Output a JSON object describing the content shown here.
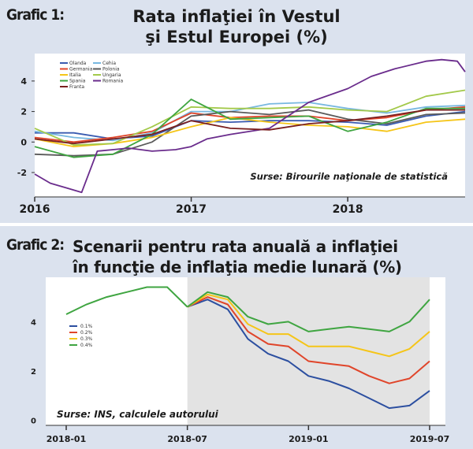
{
  "chart1": {
    "label": "Grafic 1:",
    "title_line1": "Rata inflaţiei în Vestul",
    "title_line2": "şi Estul Europei (%)",
    "source": "Surse: Birourile naţionale de statistică"
  },
  "chart2": {
    "label": "Grafic 2:",
    "title_line1": "Scenarii pentru rata anuală a inflaţiei",
    "title_line2": "în funcţie de inflaţia medie lunară (%)",
    "source": "Surse: INS, calculele autorului"
  },
  "chart_data": [
    {
      "type": "line",
      "x_ticks": [
        "2016",
        "2017",
        "2018"
      ],
      "y_ticks": [
        -2,
        0,
        2,
        4
      ],
      "xlim": [
        2016.0,
        2018.75
      ],
      "ylim": [
        -3.6,
        5.8
      ],
      "grid": false,
      "legend_position": "top-left",
      "series": [
        {
          "name": "Olanda",
          "color": "#3a5bb0",
          "x": [
            2016.0,
            2016.25,
            2016.5,
            2016.75,
            2017.0,
            2017.25,
            2017.5,
            2017.75,
            2018.0,
            2018.25,
            2018.5,
            2018.75
          ],
          "values": [
            0.6,
            0.6,
            0.2,
            0.4,
            1.4,
            1.3,
            1.4,
            1.4,
            1.3,
            1.1,
            1.7,
            2.0
          ]
        },
        {
          "name": "Cehia",
          "color": "#78b8e0",
          "x": [
            2016.0,
            2016.25,
            2016.5,
            2016.75,
            2017.0,
            2017.25,
            2017.5,
            2017.75,
            2018.0,
            2018.25,
            2018.5,
            2018.75
          ],
          "values": [
            0.7,
            0.3,
            0.1,
            0.6,
            2.0,
            2.0,
            2.5,
            2.6,
            2.2,
            1.9,
            2.3,
            2.4
          ]
        },
        {
          "name": "Germania",
          "color": "#e0452a",
          "x": [
            2016.0,
            2016.25,
            2016.5,
            2016.75,
            2017.0,
            2017.25,
            2017.5,
            2017.75,
            2018.0,
            2018.25,
            2018.5,
            2018.75
          ],
          "values": [
            0.3,
            0.0,
            0.3,
            0.7,
            1.9,
            1.6,
            1.7,
            1.7,
            1.4,
            1.6,
            2.1,
            2.3
          ]
        },
        {
          "name": "Polonia",
          "color": "#5a5a5a",
          "x": [
            2016.0,
            2016.25,
            2016.5,
            2016.75,
            2017.0,
            2017.25,
            2017.5,
            2017.75,
            2018.0,
            2018.25,
            2018.5,
            2018.75
          ],
          "values": [
            -0.8,
            -0.9,
            -0.8,
            0.0,
            1.7,
            2.0,
            1.8,
            2.1,
            1.5,
            1.2,
            1.8,
            1.9
          ]
        },
        {
          "name": "Italia",
          "color": "#f5c518",
          "x": [
            2016.0,
            2016.25,
            2016.5,
            2016.75,
            2017.0,
            2017.25,
            2017.5,
            2017.75,
            2018.0,
            2018.25,
            2018.5,
            2018.75
          ],
          "values": [
            0.2,
            -0.3,
            -0.1,
            0.3,
            1.0,
            1.6,
            1.3,
            1.1,
            1.0,
            0.7,
            1.3,
            1.5
          ]
        },
        {
          "name": "Ungaria",
          "color": "#a3c94a",
          "x": [
            2016.0,
            2016.25,
            2016.5,
            2016.75,
            2017.0,
            2017.25,
            2017.5,
            2017.75,
            2018.0,
            2018.25,
            2018.5,
            2018.75
          ],
          "values": [
            0.9,
            -0.2,
            -0.1,
            1.0,
            2.3,
            2.2,
            2.2,
            2.3,
            2.1,
            2.0,
            3.0,
            3.4
          ]
        },
        {
          "name": "Spania",
          "color": "#3fa541",
          "x": [
            2016.0,
            2016.25,
            2016.5,
            2016.75,
            2017.0,
            2017.25,
            2017.5,
            2017.75,
            2018.0,
            2018.25,
            2018.5,
            2018.75
          ],
          "values": [
            -0.3,
            -1.0,
            -0.8,
            0.5,
            2.8,
            1.5,
            1.6,
            1.7,
            0.7,
            1.3,
            2.2,
            2.2
          ]
        },
        {
          "name": "Romania",
          "color": "#6a2c8c",
          "x": [
            2016.0,
            2016.1,
            2016.2,
            2016.3,
            2016.4,
            2016.5,
            2016.6,
            2016.75,
            2016.9,
            2017.0,
            2017.1,
            2017.25,
            2017.5,
            2017.75,
            2018.0,
            2018.15,
            2018.3,
            2018.5,
            2018.6,
            2018.7,
            2018.75
          ],
          "values": [
            -2.1,
            -2.7,
            -3.0,
            -3.3,
            -0.6,
            -0.5,
            -0.4,
            -0.6,
            -0.5,
            -0.3,
            0.2,
            0.5,
            0.9,
            2.6,
            3.5,
            4.3,
            4.8,
            5.3,
            5.4,
            5.3,
            4.6
          ]
        },
        {
          "name": "Franta",
          "color": "#7a1f1f",
          "x": [
            2016.0,
            2016.25,
            2016.5,
            2016.75,
            2017.0,
            2017.25,
            2017.5,
            2017.75,
            2018.0,
            2018.25,
            2018.5,
            2018.75
          ],
          "values": [
            0.2,
            -0.1,
            0.2,
            0.5,
            1.4,
            0.9,
            0.8,
            1.2,
            1.4,
            1.7,
            2.1,
            2.1
          ]
        }
      ]
    },
    {
      "type": "line",
      "x_ticks": [
        "2018-01",
        "2018-07",
        "2019-01",
        "2019-07"
      ],
      "y_ticks": [
        0,
        2,
        4
      ],
      "xlim": [
        0,
        18
      ],
      "ylim": [
        -0.2,
        5.8
      ],
      "shaded_region": [
        6,
        18
      ],
      "grid": false,
      "legend_position": "left",
      "historical": {
        "color": "#3fa541",
        "x": [
          0,
          1,
          2,
          3,
          4,
          5,
          6
        ],
        "values": [
          4.3,
          4.7,
          5.0,
          5.2,
          5.4,
          5.4,
          4.6
        ]
      },
      "series": [
        {
          "name": "0.1%",
          "color": "#2c4fa0",
          "x": [
            6,
            7,
            8,
            9,
            10,
            11,
            12,
            13,
            14,
            15,
            16,
            17,
            18
          ],
          "values": [
            4.6,
            4.9,
            4.5,
            3.3,
            2.7,
            2.4,
            1.8,
            1.6,
            1.3,
            0.9,
            0.5,
            0.6,
            1.2
          ]
        },
        {
          "name": "0.2%",
          "color": "#e0452a",
          "x": [
            6,
            7,
            8,
            9,
            10,
            11,
            12,
            13,
            14,
            15,
            16,
            17,
            18
          ],
          "values": [
            4.6,
            5.0,
            4.7,
            3.6,
            3.1,
            3.0,
            2.4,
            2.3,
            2.2,
            1.8,
            1.5,
            1.7,
            2.4
          ]
        },
        {
          "name": "0.3%",
          "color": "#f5c518",
          "x": [
            6,
            7,
            8,
            9,
            10,
            11,
            12,
            13,
            14,
            15,
            16,
            17,
            18
          ],
          "values": [
            4.6,
            5.1,
            4.9,
            3.9,
            3.5,
            3.5,
            3.0,
            3.0,
            3.0,
            2.8,
            2.6,
            2.9,
            3.6
          ]
        },
        {
          "name": "0.4%",
          "color": "#3fa541",
          "x": [
            6,
            7,
            8,
            9,
            10,
            11,
            12,
            13,
            14,
            15,
            16,
            17,
            18
          ],
          "values": [
            4.6,
            5.2,
            5.0,
            4.2,
            3.9,
            4.0,
            3.6,
            3.7,
            3.8,
            3.7,
            3.6,
            4.0,
            4.9
          ]
        }
      ]
    }
  ]
}
